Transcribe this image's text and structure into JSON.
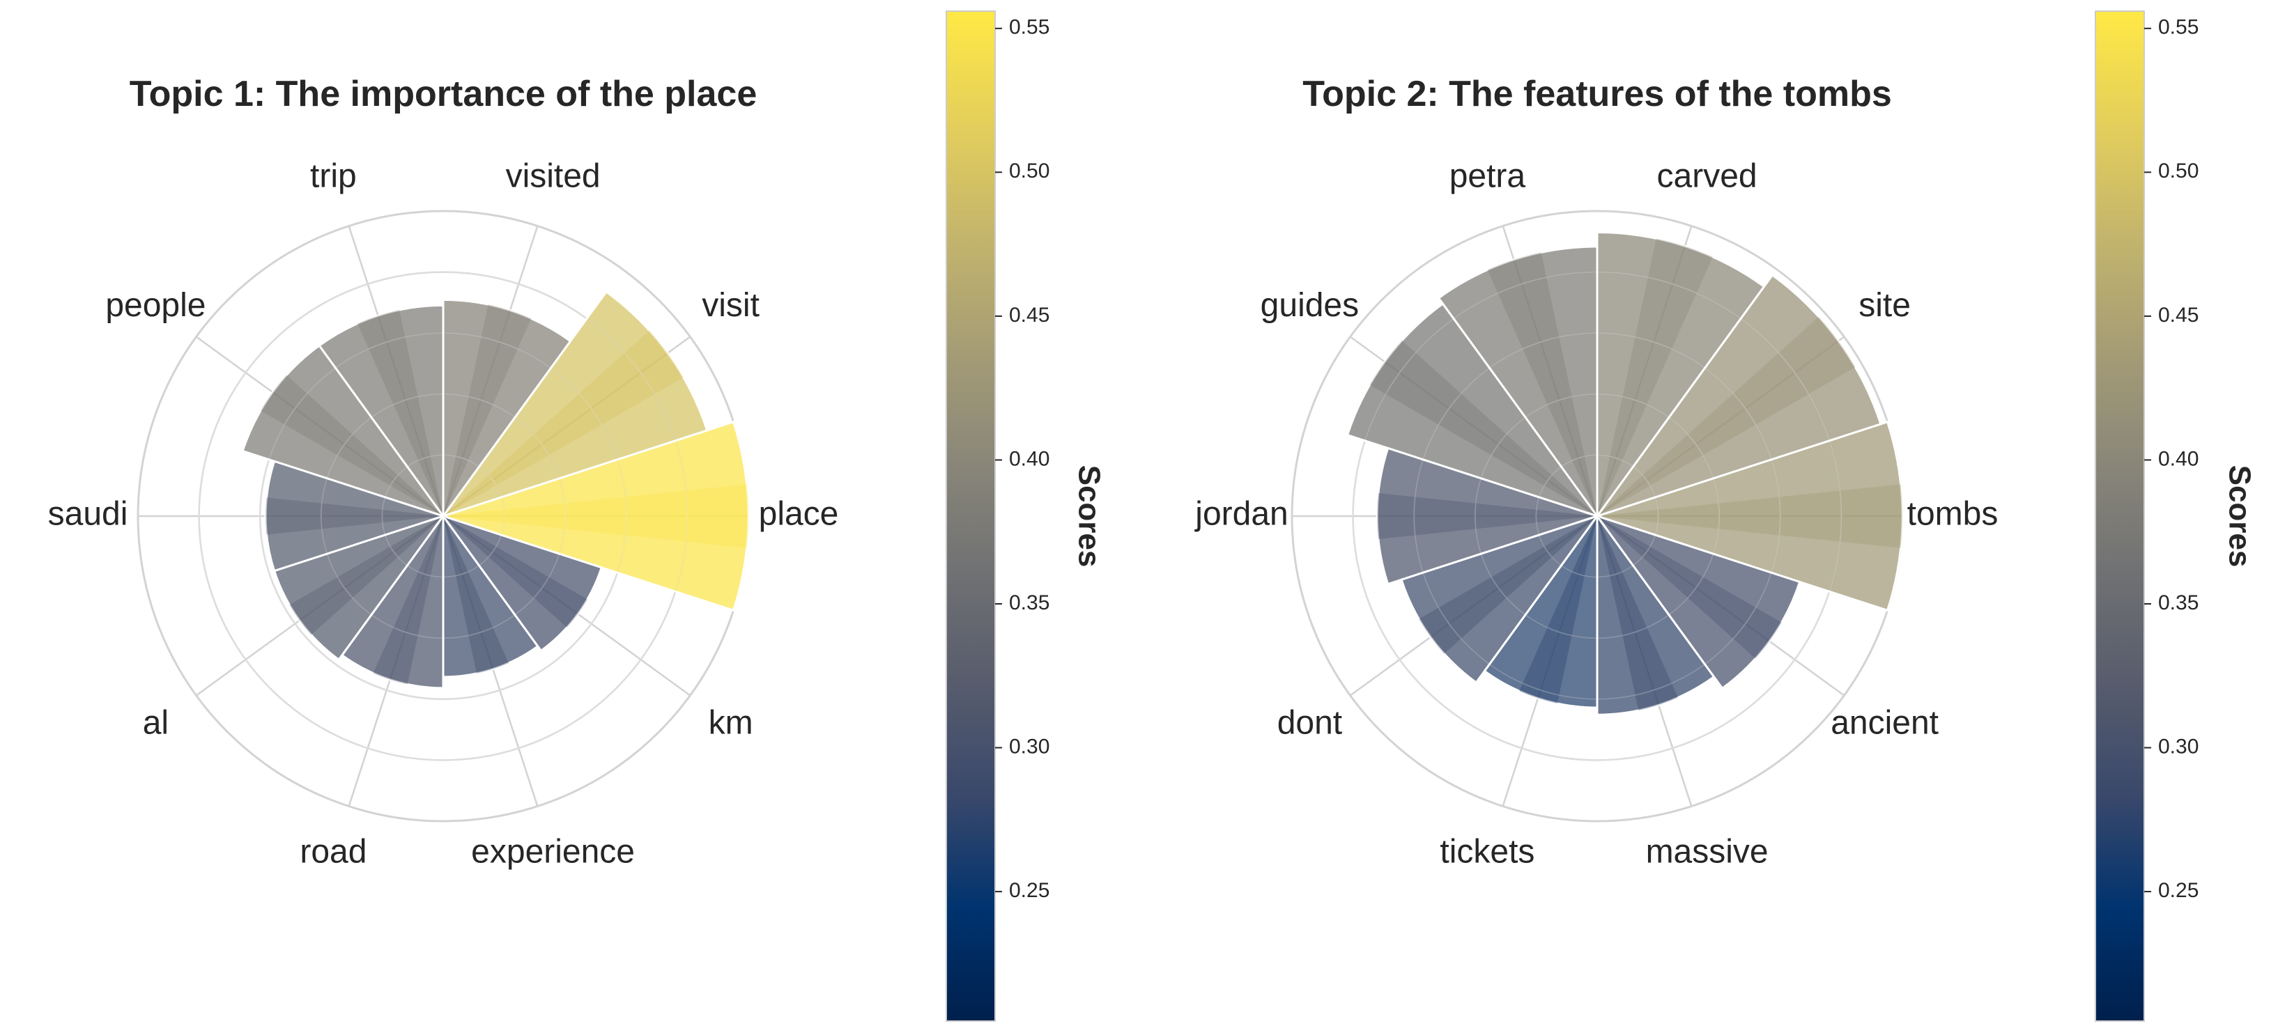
{
  "figure": {
    "colormap": "cividis",
    "colormap_stops": [
      "#00204d",
      "#00336f",
      "#39486b",
      "#575c6d",
      "#707173",
      "#8a8779",
      "#a69d75",
      "#c4b56c",
      "#e4cf5b",
      "#ffe945"
    ]
  },
  "chart_data": [
    {
      "type": "polar-bar",
      "title": "Topic 1: The importance of the place",
      "categories": [
        "place",
        "visit",
        "visited",
        "trip",
        "people",
        "saudi",
        "al",
        "road",
        "experience",
        "km"
      ],
      "values": [
        0.55,
        0.5,
        0.39,
        0.38,
        0.38,
        0.32,
        0.32,
        0.31,
        0.29,
        0.3
      ],
      "rlim": [
        0,
        0.55
      ],
      "colorbar": {
        "label": "Scores",
        "ticks": [
          "0.25",
          "0.30",
          "0.35",
          "0.40",
          "0.45",
          "0.50",
          "0.55"
        ],
        "range": [
          0.205,
          0.556
        ]
      },
      "grid": true
    },
    {
      "type": "polar-bar",
      "title": "Topic 2: The features of the tombs",
      "categories": [
        "tombs",
        "site",
        "carved",
        "petra",
        "guides",
        "jordan",
        "dont",
        "tickets",
        "massive",
        "ancient"
      ],
      "values": [
        0.43,
        0.42,
        0.4,
        0.38,
        0.37,
        0.31,
        0.29,
        0.27,
        0.28,
        0.3
      ],
      "rlim": [
        0,
        0.43
      ],
      "colorbar": {
        "label": "Scores",
        "ticks": [
          "0.25",
          "0.30",
          "0.35",
          "0.40",
          "0.45",
          "0.50",
          "0.55"
        ],
        "range": [
          0.205,
          0.556
        ]
      },
      "grid": true
    }
  ]
}
